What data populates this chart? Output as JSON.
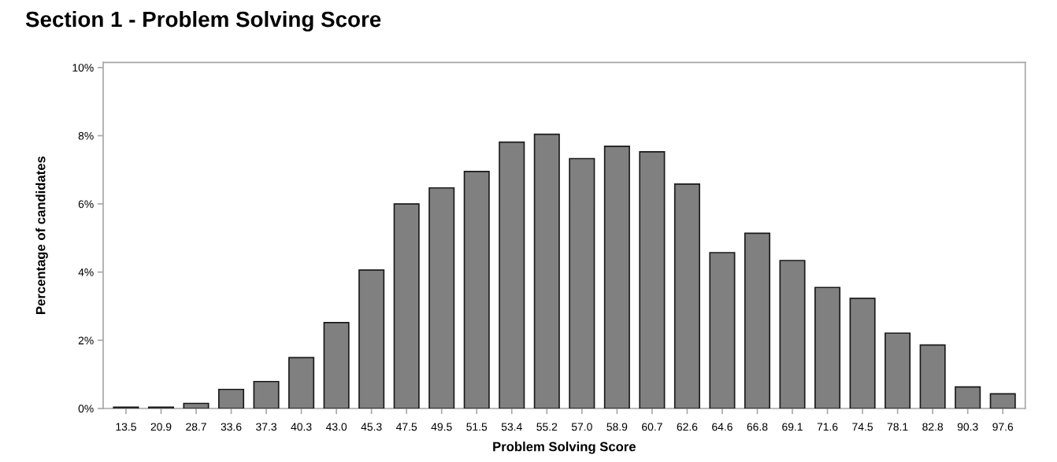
{
  "chart_data": {
    "type": "bar",
    "title": "Section 1 - Problem Solving Score",
    "xlabel": "Problem Solving Score",
    "ylabel": "Percentage of candidates",
    "categories": [
      "13.5",
      "20.9",
      "28.7",
      "33.6",
      "37.3",
      "40.3",
      "43.0",
      "45.3",
      "47.5",
      "49.5",
      "51.5",
      "53.4",
      "55.2",
      "57.0",
      "58.9",
      "60.7",
      "62.6",
      "64.6",
      "66.8",
      "69.1",
      "71.6",
      "74.5",
      "78.1",
      "82.8",
      "90.3",
      "97.6"
    ],
    "values": [
      0.04,
      0.04,
      0.15,
      0.56,
      0.79,
      1.49,
      2.52,
      4.06,
      6.0,
      6.47,
      6.95,
      7.81,
      8.04,
      7.33,
      7.69,
      7.53,
      6.58,
      4.57,
      5.14,
      4.34,
      3.55,
      3.23,
      2.21,
      1.86,
      0.63,
      0.43
    ],
    "color": "#808080",
    "ylim": [
      0,
      10.15
    ],
    "yticks": [
      {
        "value": 0,
        "label": "0%"
      },
      {
        "value": 2,
        "label": "2%"
      },
      {
        "value": 4,
        "label": "4%"
      },
      {
        "value": 6,
        "label": "6%"
      },
      {
        "value": 8,
        "label": "8%"
      },
      {
        "value": 10,
        "label": "10%"
      }
    ],
    "grid": false
  }
}
